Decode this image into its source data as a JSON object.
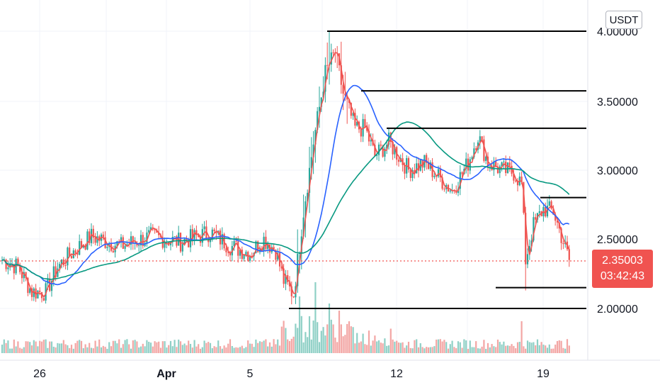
{
  "currency": "USDT",
  "last_price": "2.35003",
  "countdown": "03:42:43",
  "colors": {
    "up": "#26a69a",
    "down": "#ef5350",
    "ma_fast": "#ef5350",
    "ma_mid": "#2962ff",
    "ma_slow": "#089981",
    "vol_up": "#8fd0c6",
    "vol_down": "#f3a6a4",
    "grid": "#f0f3fa",
    "hline": "#000000"
  },
  "chart_data": {
    "type": "candlestick",
    "y_axis": {
      "ticks": [
        "4.00000",
        "3.50000",
        "3.00000",
        "2.50000",
        "2.00000"
      ],
      "range": [
        1.68,
        4.2
      ]
    },
    "x_axis": {
      "ticks": [
        "26",
        "Apr",
        "5",
        "12",
        "19"
      ],
      "bold_ticks": [
        "Apr"
      ]
    },
    "horizontal_levels": [
      4.0,
      3.57,
      3.3,
      2.8,
      2.15,
      2.0
    ],
    "series_trend": [
      [
        0,
        2.35
      ],
      [
        8,
        2.3
      ],
      [
        15,
        2.12
      ],
      [
        22,
        2.12
      ],
      [
        28,
        2.3
      ],
      [
        35,
        2.4
      ],
      [
        45,
        2.52
      ],
      [
        60,
        2.45
      ],
      [
        75,
        2.52
      ],
      [
        90,
        2.48
      ],
      [
        105,
        2.55
      ],
      [
        115,
        2.45
      ],
      [
        125,
        2.4
      ],
      [
        132,
        2.5
      ],
      [
        138,
        2.42
      ],
      [
        142,
        2.2
      ],
      [
        147,
        2.1
      ],
      [
        152,
        2.7
      ],
      [
        157,
        3.2
      ],
      [
        163,
        3.7
      ],
      [
        168,
        3.85
      ],
      [
        172,
        3.55
      ],
      [
        178,
        3.3
      ],
      [
        183,
        3.3
      ],
      [
        188,
        3.1
      ],
      [
        195,
        3.2
      ],
      [
        205,
        3.0
      ],
      [
        213,
        3.05
      ],
      [
        220,
        2.95
      ],
      [
        227,
        2.85
      ],
      [
        235,
        3.05
      ],
      [
        240,
        3.25
      ],
      [
        245,
        3.05
      ],
      [
        252,
        3.0
      ],
      [
        258,
        2.98
      ],
      [
        262,
        2.9
      ],
      [
        264,
        2.35
      ],
      [
        268,
        2.6
      ],
      [
        273,
        2.72
      ],
      [
        278,
        2.7
      ],
      [
        283,
        2.48
      ],
      [
        286,
        2.35
      ]
    ],
    "moving_averages": [
      {
        "name": "",
        "color_key": "ma_fast",
        "period": 3
      },
      {
        "name": "",
        "color_key": "ma_mid",
        "period": 20
      },
      {
        "name": "",
        "color_key": "ma_slow",
        "period": 50
      }
    ]
  }
}
